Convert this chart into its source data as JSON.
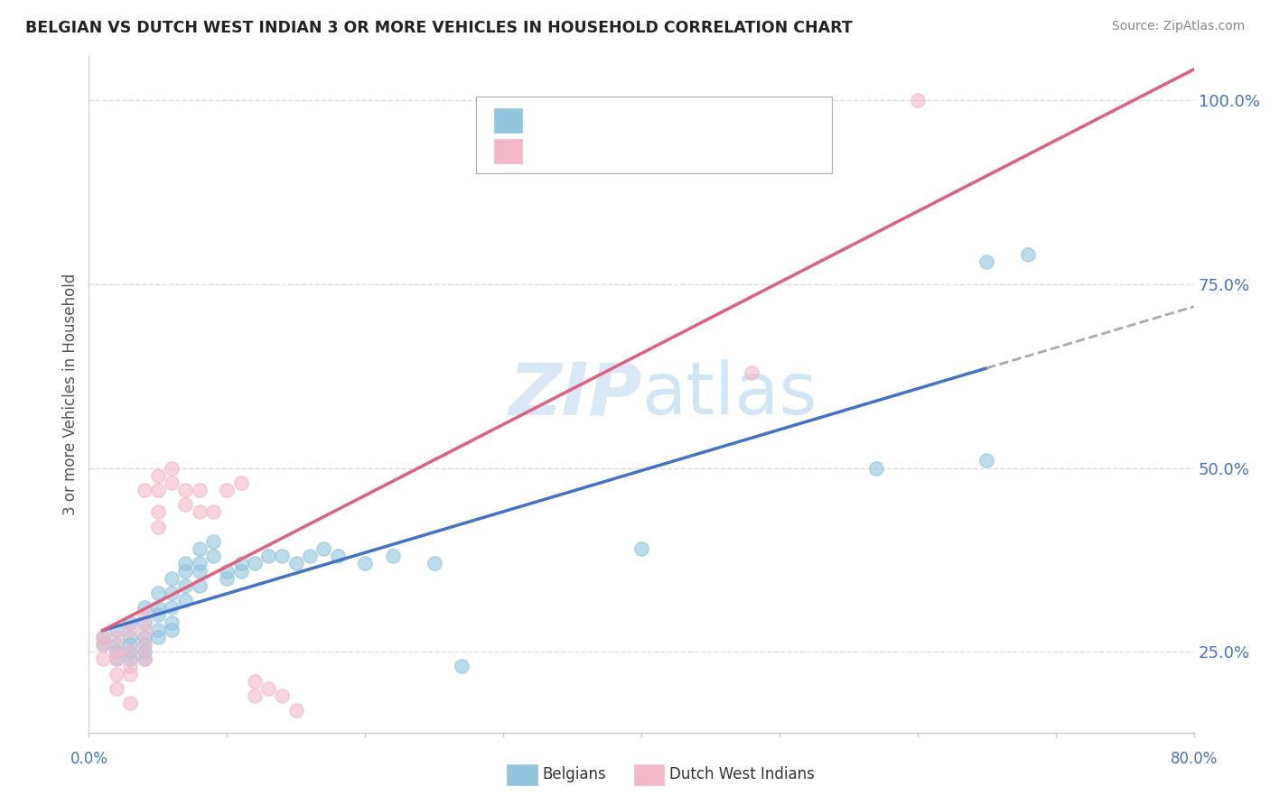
{
  "title": "BELGIAN VS DUTCH WEST INDIAN 3 OR MORE VEHICLES IN HOUSEHOLD CORRELATION CHART",
  "source": "Source: ZipAtlas.com",
  "ylabel": "3 or more Vehicles in Household",
  "yticks": [
    0.25,
    0.5,
    0.75,
    1.0
  ],
  "ytick_labels": [
    "25.0%",
    "50.0%",
    "75.0%",
    "100.0%"
  ],
  "xlim": [
    0.0,
    0.8
  ],
  "ylim": [
    0.14,
    1.06
  ],
  "blue_color": "#92c5de",
  "pink_color": "#f4b8c8",
  "blue_line_color": "#4472c4",
  "pink_line_color": "#e06080",
  "blue_scatter": [
    [
      0.01,
      0.27
    ],
    [
      0.01,
      0.26
    ],
    [
      0.02,
      0.28
    ],
    [
      0.02,
      0.26
    ],
    [
      0.02,
      0.25
    ],
    [
      0.02,
      0.24
    ],
    [
      0.03,
      0.29
    ],
    [
      0.03,
      0.27
    ],
    [
      0.03,
      0.26
    ],
    [
      0.03,
      0.25
    ],
    [
      0.03,
      0.24
    ],
    [
      0.04,
      0.31
    ],
    [
      0.04,
      0.29
    ],
    [
      0.04,
      0.27
    ],
    [
      0.04,
      0.26
    ],
    [
      0.04,
      0.25
    ],
    [
      0.04,
      0.24
    ],
    [
      0.05,
      0.33
    ],
    [
      0.05,
      0.31
    ],
    [
      0.05,
      0.3
    ],
    [
      0.05,
      0.28
    ],
    [
      0.05,
      0.27
    ],
    [
      0.06,
      0.35
    ],
    [
      0.06,
      0.33
    ],
    [
      0.06,
      0.31
    ],
    [
      0.06,
      0.29
    ],
    [
      0.06,
      0.28
    ],
    [
      0.07,
      0.37
    ],
    [
      0.07,
      0.36
    ],
    [
      0.07,
      0.34
    ],
    [
      0.07,
      0.32
    ],
    [
      0.08,
      0.39
    ],
    [
      0.08,
      0.37
    ],
    [
      0.08,
      0.36
    ],
    [
      0.08,
      0.34
    ],
    [
      0.09,
      0.4
    ],
    [
      0.09,
      0.38
    ],
    [
      0.1,
      0.36
    ],
    [
      0.1,
      0.35
    ],
    [
      0.11,
      0.37
    ],
    [
      0.11,
      0.36
    ],
    [
      0.12,
      0.37
    ],
    [
      0.13,
      0.38
    ],
    [
      0.14,
      0.38
    ],
    [
      0.15,
      0.37
    ],
    [
      0.16,
      0.38
    ],
    [
      0.17,
      0.39
    ],
    [
      0.18,
      0.38
    ],
    [
      0.2,
      0.37
    ],
    [
      0.22,
      0.38
    ],
    [
      0.25,
      0.37
    ],
    [
      0.27,
      0.23
    ],
    [
      0.4,
      0.39
    ],
    [
      0.57,
      0.5
    ],
    [
      0.65,
      0.51
    ],
    [
      0.65,
      0.78
    ],
    [
      0.68,
      0.79
    ]
  ],
  "pink_scatter": [
    [
      0.01,
      0.27
    ],
    [
      0.01,
      0.26
    ],
    [
      0.01,
      0.24
    ],
    [
      0.02,
      0.27
    ],
    [
      0.02,
      0.25
    ],
    [
      0.02,
      0.24
    ],
    [
      0.02,
      0.22
    ],
    [
      0.02,
      0.2
    ],
    [
      0.03,
      0.28
    ],
    [
      0.03,
      0.25
    ],
    [
      0.03,
      0.23
    ],
    [
      0.03,
      0.22
    ],
    [
      0.03,
      0.18
    ],
    [
      0.04,
      0.3
    ],
    [
      0.04,
      0.28
    ],
    [
      0.04,
      0.26
    ],
    [
      0.04,
      0.24
    ],
    [
      0.04,
      0.47
    ],
    [
      0.05,
      0.49
    ],
    [
      0.05,
      0.47
    ],
    [
      0.05,
      0.44
    ],
    [
      0.05,
      0.42
    ],
    [
      0.06,
      0.5
    ],
    [
      0.06,
      0.48
    ],
    [
      0.07,
      0.47
    ],
    [
      0.07,
      0.45
    ],
    [
      0.08,
      0.47
    ],
    [
      0.08,
      0.44
    ],
    [
      0.09,
      0.44
    ],
    [
      0.1,
      0.47
    ],
    [
      0.11,
      0.48
    ],
    [
      0.12,
      0.21
    ],
    [
      0.12,
      0.19
    ],
    [
      0.13,
      0.2
    ],
    [
      0.14,
      0.19
    ],
    [
      0.15,
      0.17
    ],
    [
      0.48,
      0.63
    ],
    [
      0.6,
      1.0
    ]
  ],
  "background_color": "#ffffff",
  "grid_color": "#dddddd",
  "title_color": "#222222",
  "axis_label_color": "#4472c4",
  "source_color": "#888888",
  "watermark_color": "#c8dff5"
}
